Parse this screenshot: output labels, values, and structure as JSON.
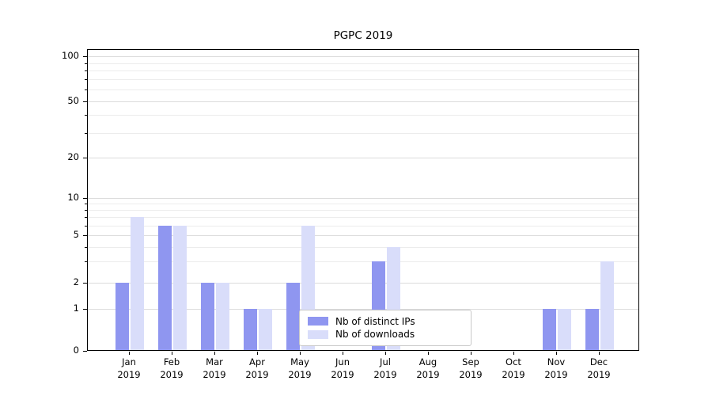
{
  "title": "PGPC 2019",
  "chart_data": {
    "type": "bar",
    "title": "PGPC 2019",
    "categories": [
      "Jan 2019",
      "Feb 2019",
      "Mar 2019",
      "Apr 2019",
      "May 2019",
      "Jun 2019",
      "Jul 2019",
      "Aug 2019",
      "Sep 2019",
      "Oct 2019",
      "Nov 2019",
      "Dec 2019"
    ],
    "category_line1": [
      "Jan",
      "Feb",
      "Mar",
      "Apr",
      "May",
      "Jun",
      "Jul",
      "Aug",
      "Sep",
      "Oct",
      "Nov",
      "Dec"
    ],
    "category_line2": "2019",
    "series": [
      {
        "name": "Nb of distinct IPs",
        "key": "distinct-ips",
        "color": "#8f96f0",
        "values": [
          2,
          6,
          2,
          1,
          2,
          0,
          3,
          0,
          0,
          0,
          1,
          1
        ]
      },
      {
        "name": "Nb of downloads",
        "key": "downloads",
        "color": "#d9ddfa",
        "values": [
          7,
          6,
          2,
          1,
          6,
          0,
          4,
          0,
          0,
          0,
          1,
          3
        ]
      }
    ],
    "yscale": "symlog",
    "yticks": [
      0,
      1,
      2,
      5,
      10,
      20,
      50,
      100
    ],
    "minor_yticks": [
      3,
      4,
      6,
      7,
      8,
      9,
      30,
      40,
      60,
      70,
      80,
      90
    ],
    "ylim": [
      0,
      120
    ],
    "grid": true,
    "legend_position": "lower center",
    "xlabel": "",
    "ylabel": ""
  }
}
